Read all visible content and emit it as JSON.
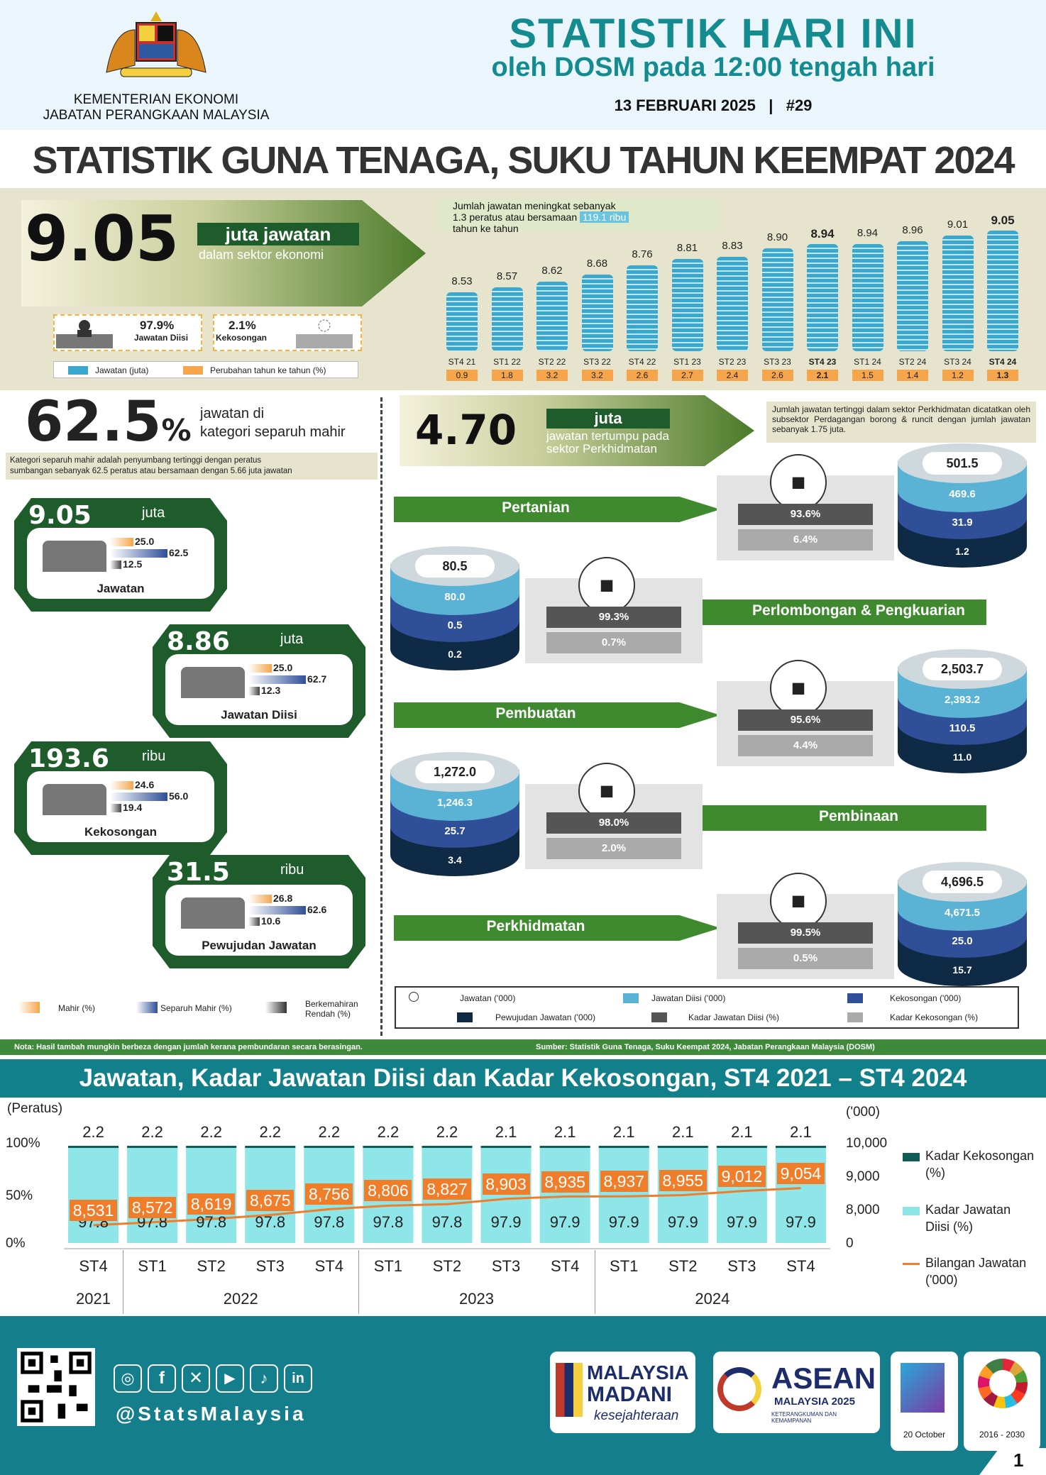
{
  "header": {
    "ministry_line1": "KEMENTERIAN EKONOMI",
    "ministry_line2": "JABATAN PERANGKAAN MALAYSIA",
    "title": "STATISTIK HARI INI",
    "subtitle": "oleh DOSM pada 12:00 tengah hari",
    "date_issue": "13 FEBRUARI 2025   |   #29"
  },
  "main_title": "STATISTIK GUNA TENAGA, SUKU TAHUN KEEMPAT 2024",
  "jobs_summary": {
    "value": "9.05",
    "unit": "juta jawatan",
    "desc": "dalam sektor ekonomi",
    "filled_pct": "97.9%",
    "filled_label": "Jawatan Diisi",
    "vacancy_pct": "2.1%",
    "vacancy_label": "Kekosongan",
    "legend_jobs": "Jawatan (juta)",
    "legend_change": "Perubahan tahun ke tahun (%)",
    "note_part1": "Jumlah jawatan meningkat sebanyak",
    "note_part2": "1.3 peratus atau bersamaan",
    "note_highlight": "119.1 ribu",
    "note_part3": "tahun ke tahun"
  },
  "jobs_bars": [
    {
      "cat": "ST4 21",
      "value": "8.53",
      "v": 8.53,
      "chg": "0.9",
      "bold": false
    },
    {
      "cat": "ST1 22",
      "value": "8.57",
      "v": 8.57,
      "chg": "1.8",
      "bold": false
    },
    {
      "cat": "ST2 22",
      "value": "8.62",
      "v": 8.62,
      "chg": "3.2",
      "bold": false
    },
    {
      "cat": "ST3 22",
      "value": "8.68",
      "v": 8.68,
      "chg": "3.2",
      "bold": false
    },
    {
      "cat": "ST4 22",
      "value": "8.76",
      "v": 8.76,
      "chg": "2.6",
      "bold": false
    },
    {
      "cat": "ST1 23",
      "value": "8.81",
      "v": 8.81,
      "chg": "2.7",
      "bold": false
    },
    {
      "cat": "ST2 23",
      "value": "8.83",
      "v": 8.83,
      "chg": "2.4",
      "bold": false
    },
    {
      "cat": "ST3 23",
      "value": "8.90",
      "v": 8.9,
      "chg": "2.6",
      "bold": false
    },
    {
      "cat": "ST4 23",
      "value": "8.94",
      "v": 8.94,
      "chg": "2.1",
      "bold": true
    },
    {
      "cat": "ST1 24",
      "value": "8.94",
      "v": 8.94,
      "chg": "1.5",
      "bold": false
    },
    {
      "cat": "ST2 24",
      "value": "8.96",
      "v": 8.96,
      "chg": "1.4",
      "bold": false
    },
    {
      "cat": "ST3 24",
      "value": "9.01",
      "v": 9.01,
      "chg": "1.2",
      "bold": false
    },
    {
      "cat": "ST4 24",
      "value": "9.05",
      "v": 9.05,
      "chg": "1.3",
      "bold": true
    }
  ],
  "semi_skilled": {
    "pct": "62.5",
    "pct_sign": "%",
    "desc1": "jawatan di",
    "desc2": "kategori separuh mahir",
    "note1": "Kategori separuh mahir adalah penyumbang tertinggi dengan peratus",
    "note2": "sumbangan sebanyak 62.5 peratus atau bersamaan dengan 5.66 juta jawatan"
  },
  "skill_cards": [
    {
      "value": "9.05",
      "unit": "juta",
      "label": "Jawatan",
      "mahir": "25.0",
      "separuh": "62.5",
      "rendah": "12.5"
    },
    {
      "value": "8.86",
      "unit": "juta",
      "label": "Jawatan Diisi",
      "mahir": "25.0",
      "separuh": "62.7",
      "rendah": "12.3"
    },
    {
      "value": "193.6",
      "unit": "ribu",
      "label": "Kekosongan",
      "mahir": "24.6",
      "separuh": "56.0",
      "rendah": "19.4"
    },
    {
      "value": "31.5",
      "unit": "ribu",
      "label": "Pewujudan Jawatan",
      "mahir": "26.8",
      "separuh": "62.6",
      "rendah": "10.6"
    }
  ],
  "skill_legend": {
    "mahir": "Mahir (%)",
    "separuh": "Separuh Mahir (%)",
    "rendah": "Berkemahiran Rendah (%)"
  },
  "services": {
    "value": "4.70",
    "unit": "juta",
    "desc1": "jawatan tertumpu pada",
    "desc2": "sektor Perkhidmatan",
    "note": "Jumlah jawatan tertinggi dalam sektor Perkhidmatan dicatatkan oleh subsektor Perdagangan borong & runcit dengan jumlah jawatan sebanyak 1.75 juta."
  },
  "sectors": [
    {
      "name": "Pertanian",
      "icon": "palm-tree-icon",
      "filled_rate": "93.6%",
      "vac_rate": "6.4%",
      "jobs": "501.5",
      "filled": "469.6",
      "vac": "31.9",
      "created": "1.2"
    },
    {
      "name": "Perlombongan & Pengkuarian",
      "icon": "oil-rig-icon",
      "filled_rate": "99.3%",
      "vac_rate": "0.7%",
      "jobs": "80.5",
      "filled": "80.0",
      "vac": "0.5",
      "created": "0.2"
    },
    {
      "name": "Pembuatan",
      "icon": "factory-icon",
      "filled_rate": "95.6%",
      "vac_rate": "4.4%",
      "jobs": "2,503.7",
      "filled": "2,393.2",
      "vac": "110.5",
      "created": "11.0"
    },
    {
      "name": "Pembinaan",
      "icon": "crane-icon",
      "filled_rate": "98.0%",
      "vac_rate": "2.0%",
      "jobs": "1,272.0",
      "filled": "1,246.3",
      "vac": "25.7",
      "created": "3.4"
    },
    {
      "name": "Perkhidmatan",
      "icon": "service-icon",
      "filled_rate": "99.5%",
      "vac_rate": "0.5%",
      "jobs": "4,696.5",
      "filled": "4,671.5",
      "vac": "25.0",
      "created": "15.7"
    }
  ],
  "sector_legend": {
    "jobs": "Jawatan ('000)",
    "filled": "Jawatan Diisi ('000)",
    "vac": "Kekosongan ('000)",
    "created": "Pewujudan Jawatan ('000)",
    "filled_rate": "Kadar Jawatan Diisi (%)",
    "vac_rate": "Kadar Kekosongan (%)"
  },
  "note_strip": {
    "left": "Nota: Hasil tambah mungkin berbeza dengan jumlah kerana pembundaran secara berasingan.",
    "right": "Sumber: Statistik Guna Tenaga, Suku Keempat 2024, Jabatan Perangkaan Malaysia (DOSM)"
  },
  "section_title": "Jawatan, Kadar Jawatan Diisi dan Kadar Kekosongan, ST4 2021 – ST4 2024",
  "chart_data": {
    "type": "bar",
    "ylabel": "(Peratus)",
    "y2label": "('000)",
    "y_ticks": [
      "100%",
      "50%",
      "0%"
    ],
    "y2_ticks": [
      "10,000",
      "9,000",
      "8,000",
      "0"
    ],
    "categories": [
      "ST4",
      "ST1",
      "ST2",
      "ST3",
      "ST4",
      "ST1",
      "ST2",
      "ST3",
      "ST4",
      "ST1",
      "ST2",
      "ST3",
      "ST4"
    ],
    "years": [
      {
        "label": "2021",
        "span": 1
      },
      {
        "label": "2022",
        "span": 4
      },
      {
        "label": "2023",
        "span": 4
      },
      {
        "label": "2024",
        "span": 4
      }
    ],
    "series": [
      {
        "name": "Kadar Kekosongan (%)",
        "values": [
          "2.2",
          "2.2",
          "2.2",
          "2.2",
          "2.2",
          "2.2",
          "2.2",
          "2.1",
          "2.1",
          "2.1",
          "2.1",
          "2.1",
          "2.1"
        ]
      },
      {
        "name": "Kadar Jawatan Diisi (%)",
        "values": [
          "97.8",
          "97.8",
          "97.8",
          "97.8",
          "97.8",
          "97.8",
          "97.8",
          "97.9",
          "97.9",
          "97.9",
          "97.9",
          "97.9",
          "97.9"
        ]
      },
      {
        "name": "Bilangan Jawatan ('000)",
        "values": [
          "8,531",
          "8,572",
          "8,619",
          "8,675",
          "8,756",
          "8,806",
          "8,827",
          "8,903",
          "8,935",
          "8,937",
          "8,955",
          "9,012",
          "9,054"
        ],
        "nums": [
          8531,
          8572,
          8619,
          8675,
          8756,
          8806,
          8827,
          8903,
          8935,
          8937,
          8955,
          9012,
          9054
        ]
      }
    ],
    "colors": {
      "vac": "#0f5c57",
      "filled": "#8ee6e8",
      "line": "#f07d2a"
    }
  },
  "footer": {
    "handle": "@StatsMalaysia",
    "madani1": "MALAYSIA",
    "madani2": "MADANI",
    "madani3": "kesejahteraan",
    "asean1": "ASEAN",
    "asean2": "MALAYSIA 2025",
    "asean3": "KETERANGKUMAN DAN KEMAMPANAN",
    "stats_day": "20 October",
    "sdg_years": "2016 - 2030",
    "page": "1"
  }
}
